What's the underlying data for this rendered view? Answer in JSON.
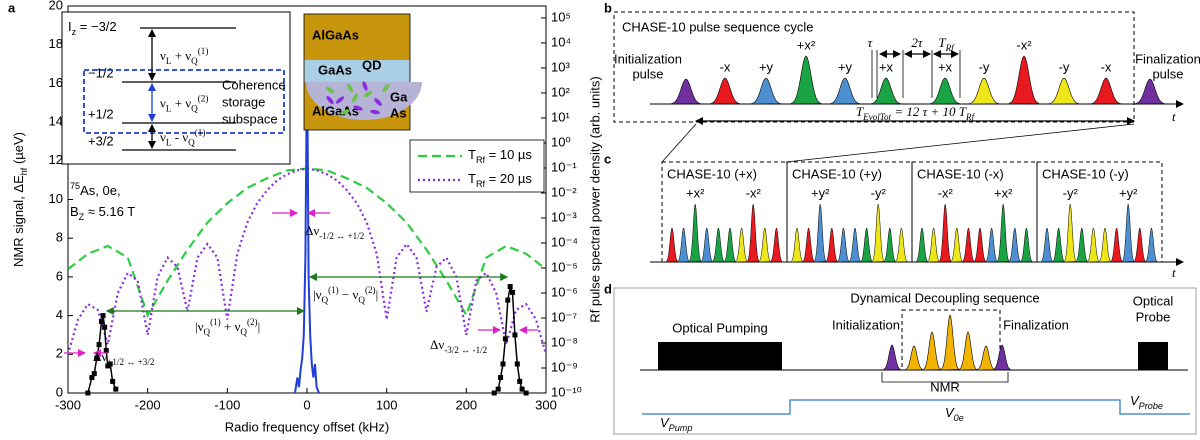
{
  "panel_labels": [
    "a",
    "b",
    "c",
    "d"
  ],
  "chart_data": {
    "type": "line",
    "xlabel": "Radio frequency offset (kHz)",
    "ylabel": [
      "NMR signal, ΔE",
      {
        "sub": "hf"
      },
      " (µeV)"
    ],
    "y2label": "Rf pulse spectral power density (arb. units)",
    "xlim": [
      -300,
      300
    ],
    "xticks": [
      -300,
      -200,
      -100,
      0,
      100,
      200,
      300
    ],
    "ylim": [
      0,
      20
    ],
    "yticks": [
      0,
      2,
      4,
      6,
      8,
      10,
      12,
      14,
      16,
      18,
      20
    ],
    "y2scale": "log",
    "y2lim": [
      1e-10,
      300000
    ],
    "y2ticks": [
      {
        "value": 100000,
        "label": "10⁵"
      },
      {
        "value": 10000,
        "label": "10⁴"
      },
      {
        "value": 1000,
        "label": "10³"
      },
      {
        "value": 100,
        "label": "10²"
      },
      {
        "value": 10,
        "label": "10¹"
      },
      {
        "value": 1,
        "label": "10⁰"
      },
      {
        "value": 0.1,
        "label": "10⁻¹"
      },
      {
        "value": 0.01,
        "label": "10⁻²"
      },
      {
        "value": 0.001,
        "label": "10⁻³"
      },
      {
        "value": 0.0001,
        "label": "10⁻⁴"
      },
      {
        "value": 1e-05,
        "label": "10⁻⁵"
      },
      {
        "value": 1e-06,
        "label": "10⁻⁶"
      },
      {
        "value": 1e-07,
        "label": "10⁻⁷"
      },
      {
        "value": 1e-08,
        "label": "10⁻⁸"
      },
      {
        "value": 1e-09,
        "label": "10⁻⁹"
      },
      {
        "value": 1e-10,
        "label": "10⁻¹⁰"
      }
    ],
    "legend": "right",
    "series": [
      {
        "name": [
          "T",
          {
            "sub": "Rf"
          },
          " = 10 µs"
        ],
        "color": "#2ecc40",
        "style": "dashed",
        "axis": "y2",
        "x": [
          -300,
          -275,
          -250,
          -225,
          -200,
          -175,
          -150,
          -125,
          -100,
          -75,
          -50,
          -25,
          0,
          25,
          50,
          75,
          100,
          125,
          150,
          175,
          200,
          225,
          250,
          275,
          300
        ],
        "values": [
          8.9e-06,
          3.7e-05,
          7.6e-05,
          2.6e-05,
          1.3e-07,
          3.1e-06,
          5.4e-05,
          0.00065,
          0.0039,
          0.016,
          0.039,
          0.08,
          0.095,
          0.08,
          0.039,
          0.016,
          0.0039,
          0.00065,
          5.4e-05,
          3.1e-06,
          1.3e-07,
          2.6e-05,
          7.6e-05,
          3.7e-05,
          8.9e-06
        ]
      },
      {
        "name": [
          "T",
          {
            "sub": "Rf"
          },
          " = 20 µs"
        ],
        "color": "#8a2be2",
        "style": "dotted",
        "axis": "y2",
        "x": [
          -300,
          -287.5,
          -275,
          -262.5,
          -250,
          -237.5,
          -225,
          -212.5,
          -200,
          -187.5,
          -175,
          -162.5,
          -150,
          -137.5,
          -125,
          -112.5,
          -100,
          -87.5,
          -75,
          -62.5,
          -50,
          -37.5,
          -25,
          -12.5,
          0,
          12.5,
          25,
          37.5,
          50,
          62.5,
          75,
          87.5,
          100,
          112.5,
          125,
          137.5,
          150,
          162.5,
          175,
          187.5,
          200,
          212.5,
          225,
          237.5,
          250,
          262.5,
          275,
          287.5,
          300
        ],
        "values": [
          3.5e-09,
          8.7e-08,
          3.6e-07,
          2.1e-07,
          8.6e-09,
          1e-06,
          6.3e-06,
          3.1e-06,
          2.1e-08,
          4.4e-06,
          2.6e-05,
          1.1e-05,
          1.8e-07,
          2.6e-05,
          9.1e-05,
          2.6e-05,
          8.7e-08,
          3.7e-05,
          0.00065,
          0.0039,
          0.013,
          0.032,
          0.056,
          0.08,
          0.095,
          0.08,
          0.056,
          0.032,
          0.013,
          0.0039,
          0.00065,
          3.7e-05,
          8.7e-08,
          2.6e-05,
          9.1e-05,
          2.6e-05,
          1.8e-07,
          1.1e-05,
          2.6e-05,
          4.4e-06,
          2.1e-08,
          3.1e-06,
          6.3e-06,
          1e-06,
          8.6e-09,
          2.1e-07,
          3.6e-07,
          8.7e-08,
          3.5e-09
        ]
      },
      {
        "color": "#1f3fd6",
        "style": "solid",
        "axis": "y",
        "x": [
          -15,
          -12,
          -10,
          -8,
          -6,
          -4,
          -2,
          -1,
          0,
          1,
          2,
          4,
          6,
          8,
          10,
          12,
          15
        ],
        "values": [
          0,
          0.8,
          0.3,
          1.2,
          1.8,
          3,
          7,
          12,
          18,
          12,
          6,
          3,
          1.5,
          0.8,
          1.5,
          0.3,
          0
        ]
      },
      {
        "color": "#000000",
        "style": "markers",
        "axis": "y",
        "x": [
          -275,
          -270,
          -267,
          -264,
          -261,
          -258,
          -256,
          -254,
          -252,
          -250,
          -247,
          -244,
          -240
        ],
        "values": [
          0,
          0.8,
          1.0,
          1.8,
          2.5,
          3.7,
          4.0,
          3.4,
          2.2,
          1.4,
          1.5,
          0.6,
          0.2
        ]
      },
      {
        "color": "#000000",
        "style": "markers",
        "axis": "y",
        "x": [
          235,
          240,
          243,
          246,
          249,
          252,
          255,
          258,
          261,
          264,
          267,
          270,
          275
        ],
        "values": [
          0,
          0.2,
          0.8,
          1.5,
          2.8,
          4.8,
          5.5,
          5.2,
          3.0,
          1.5,
          0.6,
          0.2,
          0
        ]
      }
    ],
    "annotations": {
      "isotope": [
        {
          "sup": "75"
        },
        "As, 0e,"
      ],
      "field": [
        "B",
        {
          "sub": "Z"
        },
        " ≈ 5.16 T"
      ],
      "central_width": [
        "Δν",
        {
          "sub": "-1/2 ↔ +1/2"
        }
      ],
      "diff": [
        "|ν",
        {
          "sub": "Q"
        },
        {
          "sup": "(1)"
        },
        " − ν",
        {
          "sub": "Q"
        },
        {
          "sup": "(2)"
        },
        "|"
      ],
      "sum": [
        "|ν",
        {
          "sub": "Q"
        },
        {
          "sup": "(1)"
        },
        " + ν",
        {
          "sub": "Q"
        },
        {
          "sup": "(2)"
        },
        "|"
      ],
      "left_width": [
        "Δν",
        {
          "sub": "+1/2 ↔ +3/2"
        }
      ],
      "right_width": [
        "Δν",
        {
          "sub": "-3/2 ↔ -1/2"
        }
      ]
    },
    "level_inset": {
      "levels": [
        [
          "I",
          {
            "sub": "z"
          },
          " = −3/2"
        ],
        "−1/2",
        "+1/2",
        "+3/2"
      ],
      "transitions": [
        [
          "ν",
          {
            "sub": "L"
          },
          " + ν",
          {
            "sub": "Q"
          },
          {
            "sup": "(1)"
          }
        ],
        [
          "ν",
          {
            "sub": "L"
          },
          " + ν",
          {
            "sub": "Q"
          },
          {
            "sup": "(2)"
          }
        ],
        [
          "ν",
          {
            "sub": "L"
          },
          " - ν",
          {
            "sub": "Q"
          },
          {
            "sup": "(1)"
          }
        ]
      ],
      "box": [
        "Coherence",
        "storage",
        "subspace"
      ]
    },
    "structure_inset": {
      "layers": [
        "AlGaAs",
        "GaAs",
        "AlGaAs"
      ],
      "dot": "QD",
      "atoms": [
        "Ga",
        "As"
      ]
    }
  },
  "panel_b": {
    "title": "CHASE-10 pulse sequence cycle",
    "initialization": [
      "Initialization",
      "pulse"
    ],
    "finalization": [
      "Finalization",
      "pulse"
    ],
    "pulses": [
      {
        "label": "-x",
        "color": "#e8191f"
      },
      {
        "label": "+y",
        "color": "#4d8fd0"
      },
      {
        "label": "+x²",
        "color": "#1aa344",
        "big": true
      },
      {
        "label": "+y",
        "color": "#4d8fd0"
      },
      {
        "label": "+x",
        "color": "#1aa344"
      },
      {
        "label": "+x",
        "color": "#1aa344"
      },
      {
        "label": "-y",
        "color": "#ede71a"
      },
      {
        "label": "-x²",
        "color": "#e8191f",
        "big": true
      },
      {
        "label": "-y",
        "color": "#ede71a"
      },
      {
        "label": "-x",
        "color": "#e8191f"
      }
    ],
    "edge_color": "#7030a0",
    "tau": "τ",
    "two_tau": "2τ",
    "t_rf": [
      "T",
      {
        "sub": "Rf"
      }
    ],
    "total": [
      "T",
      {
        "sub": "EvolTot"
      },
      " = 12 τ + 10 T",
      {
        "sub": "Rf"
      }
    ],
    "axis": "t"
  },
  "panel_c": {
    "boxes": [
      {
        "title": "CHASE-10 (+x)",
        "labels": [
          "+x²",
          "-x²"
        ],
        "colors": [
          "#e8191f",
          "#4d8fd0",
          "#1aa344",
          "#4d8fd0",
          "#1aa344",
          "#1aa344",
          "#ede71a",
          "#e8191f",
          "#ede71a",
          "#e8191f"
        ]
      },
      {
        "title": "CHASE-10 (+y)",
        "labels": [
          "+y²",
          "-y²"
        ],
        "colors": [
          "#ede71a",
          "#e8191f",
          "#4d8fd0",
          "#e8191f",
          "#4d8fd0",
          "#4d8fd0",
          "#1aa344",
          "#ede71a",
          "#1aa344",
          "#ede71a"
        ]
      },
      {
        "title": "CHASE-10 (-x)",
        "labels": [
          "-x²",
          "+x²"
        ],
        "colors": [
          "#1aa344",
          "#ede71a",
          "#e8191f",
          "#ede71a",
          "#e8191f",
          "#e8191f",
          "#4d8fd0",
          "#1aa344",
          "#4d8fd0",
          "#1aa344"
        ]
      },
      {
        "title": "CHASE-10 (-y)",
        "labels": [
          "-y²",
          "+y²"
        ],
        "colors": [
          "#4d8fd0",
          "#1aa344",
          "#ede71a",
          "#1aa344",
          "#ede71a",
          "#ede71a",
          "#e8191f",
          "#4d8fd0",
          "#e8191f",
          "#4d8fd0"
        ]
      }
    ],
    "axis": "t"
  },
  "panel_d": {
    "pumping": "Optical Pumping",
    "sequence": "Dynamical Decoupling sequence",
    "initialization": "Initialization",
    "finalization": "Finalization",
    "probe": [
      "Optical",
      "Probe"
    ],
    "nmr": "NMR",
    "voltages": [
      [
        "V",
        {
          "sub": "Pump"
        }
      ],
      [
        "V",
        {
          "sub": "0e"
        }
      ],
      [
        "V",
        {
          "sub": "Probe"
        }
      ]
    ]
  }
}
